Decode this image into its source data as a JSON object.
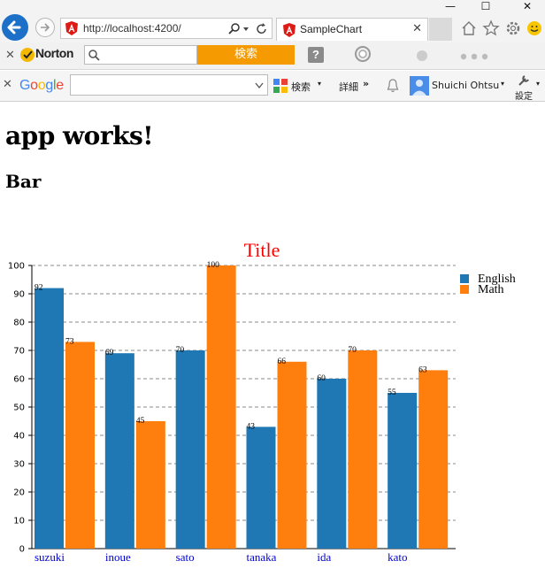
{
  "window": {
    "minimize_label": "—",
    "maximize_label": "☐",
    "close_label": "✕"
  },
  "browser": {
    "address_url": "http://localhost:4200/",
    "tab_title": "SampleChart",
    "icons": [
      "back-arrow-icon",
      "forward-arrow-icon",
      "angular-logo-icon",
      "search-icon",
      "refresh-icon",
      "home-icon",
      "star-icon",
      "gear-icon",
      "smiley-icon"
    ]
  },
  "norton": {
    "brand": "Norton",
    "search_button": "検索",
    "help_label": "?",
    "accent_color": "#f59a00"
  },
  "google_toolbar": {
    "brand": "Google",
    "search_label": "検索",
    "more_label": "詳細",
    "user_name": "Shuichi Ohtsu",
    "settings_label": "設定"
  },
  "page": {
    "heading": "app works!",
    "subheading": "Bar"
  },
  "chart_data": {
    "type": "bar",
    "title": "Title",
    "title_color": "#ff0000",
    "categories": [
      "suzuki",
      "inoue",
      "sato",
      "tanaka",
      "ida",
      "kato"
    ],
    "series": [
      {
        "name": "English",
        "color": "#1f77b4",
        "values": [
          92,
          69,
          70,
          43,
          60,
          55
        ]
      },
      {
        "name": "Math",
        "color": "#ff7f0e",
        "values": [
          73,
          45,
          100,
          66,
          70,
          63
        ]
      }
    ],
    "ylim": [
      0,
      100
    ],
    "yticks": [
      0,
      10,
      20,
      30,
      40,
      50,
      60,
      70,
      80,
      90,
      100
    ],
    "grid": "horizontal-dashed",
    "legend_position": "top-right",
    "category_label_color": "#0000cc"
  }
}
